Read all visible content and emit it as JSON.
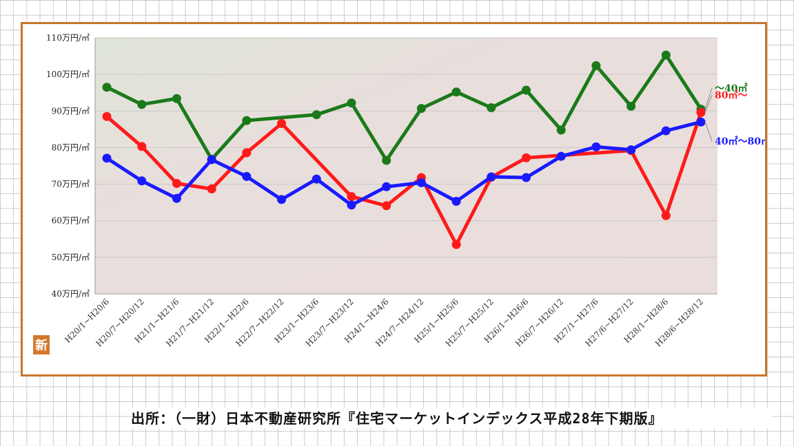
{
  "chart_data": {
    "type": "line",
    "categories": [
      "H20/1~H20/6",
      "H20/7~H20/12",
      "H21/1~H21/6",
      "H21/7~H21/12",
      "H22/1~H22/6",
      "H22/7~H22/12",
      "H23/1~H23/6",
      "H23/7~H23/12",
      "H24/1~H24/6",
      "H24/7~H24/12",
      "H25/1~H25/6",
      "H25/7~H25/12",
      "H26/1~H26/6",
      "H26/7~H26/12",
      "H27/1~H27/6",
      "H27/6~H27/12",
      "H28/1~H28/6",
      "H28/6~H28/12"
    ],
    "y_ticks": [
      "110万円/㎡",
      "100万円/㎡",
      "90万円/㎡",
      "80万円/㎡",
      "70万円/㎡",
      "60万円/㎡",
      "50万円/㎡",
      "40万円/㎡"
    ],
    "ylim": [
      40,
      110
    ],
    "grid": true,
    "series": [
      {
        "name": "～40㎡",
        "color": "#1a7a1a",
        "values": [
          96.5,
          91.8,
          93.4,
          76.8,
          87.4,
          null,
          89.0,
          92.2,
          76.5,
          90.7,
          95.2,
          90.9,
          95.7,
          84.8,
          102.4,
          91.3,
          105.3,
          90.5
        ]
      },
      {
        "name": "80㎡～",
        "color": "#ff1a1a",
        "values": [
          88.5,
          80.3,
          70.2,
          68.7,
          78.6,
          86.6,
          null,
          66.6,
          64.1,
          71.8,
          53.5,
          71.9,
          77.2,
          null,
          null,
          79.2,
          61.4,
          89.6
        ]
      },
      {
        "name": "40㎡～80㎡",
        "color": "#1a1aff",
        "values": [
          77.1,
          70.9,
          66.1,
          76.7,
          72.1,
          65.8,
          71.4,
          64.3,
          69.3,
          70.4,
          65.3,
          72.0,
          71.8,
          77.6,
          80.2,
          79.4,
          84.6,
          87.0
        ]
      }
    ]
  },
  "logo": {
    "text": "新",
    "color": "#d4772c"
  },
  "source": "出所：（一財）日本不動産研究所『住宅マーケットインデックス平成28年下期版』"
}
